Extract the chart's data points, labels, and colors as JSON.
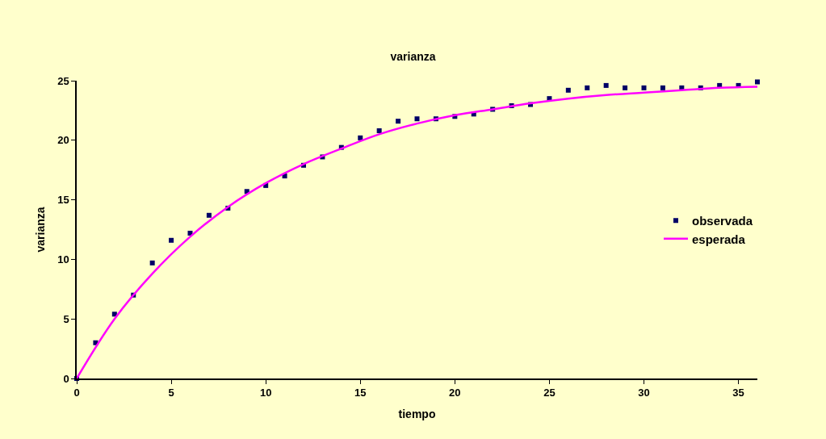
{
  "chart_data": {
    "type": "scatter",
    "title": "varianza",
    "xlabel": "tiempo",
    "ylabel": "varianza",
    "xlim": [
      0,
      36
    ],
    "ylim": [
      0,
      25
    ],
    "xticks": [
      0,
      5,
      10,
      15,
      20,
      25,
      30,
      35
    ],
    "yticks": [
      0,
      5,
      10,
      15,
      20,
      25
    ],
    "grid": false,
    "legend": "right",
    "series": [
      {
        "name": "observada",
        "marker": "square",
        "color": "#000066",
        "x": [
          0,
          1,
          2,
          3,
          4,
          5,
          6,
          7,
          8,
          9,
          10,
          11,
          12,
          13,
          14,
          15,
          16,
          17,
          18,
          19,
          20,
          21,
          22,
          23,
          24,
          25,
          26,
          27,
          28,
          29,
          30,
          31,
          32,
          33,
          34,
          35,
          36
        ],
        "values": [
          0,
          3.0,
          5.4,
          7.0,
          9.7,
          11.6,
          12.2,
          13.7,
          14.3,
          15.7,
          16.2,
          17.0,
          17.9,
          18.6,
          19.4,
          20.2,
          20.8,
          21.6,
          21.8,
          21.8,
          22.0,
          22.2,
          22.6,
          22.9,
          23.0,
          23.5,
          24.2,
          24.4,
          24.6,
          24.4,
          24.4,
          24.4,
          24.4,
          24.4,
          24.6,
          24.6,
          24.9
        ]
      },
      {
        "name": "esperada",
        "type": "line",
        "marker": "none",
        "line_style": "solid",
        "color": "#ff00ff",
        "x": [
          0,
          2,
          4,
          6,
          8,
          10,
          12,
          14,
          16,
          18,
          20,
          22,
          24,
          26,
          28,
          30,
          32,
          34,
          36
        ],
        "values": [
          0,
          5.0,
          8.8,
          11.9,
          14.4,
          16.4,
          18.0,
          19.3,
          20.5,
          21.4,
          22.1,
          22.6,
          23.1,
          23.5,
          23.8,
          24.0,
          24.2,
          24.4,
          24.5
        ]
      }
    ]
  }
}
